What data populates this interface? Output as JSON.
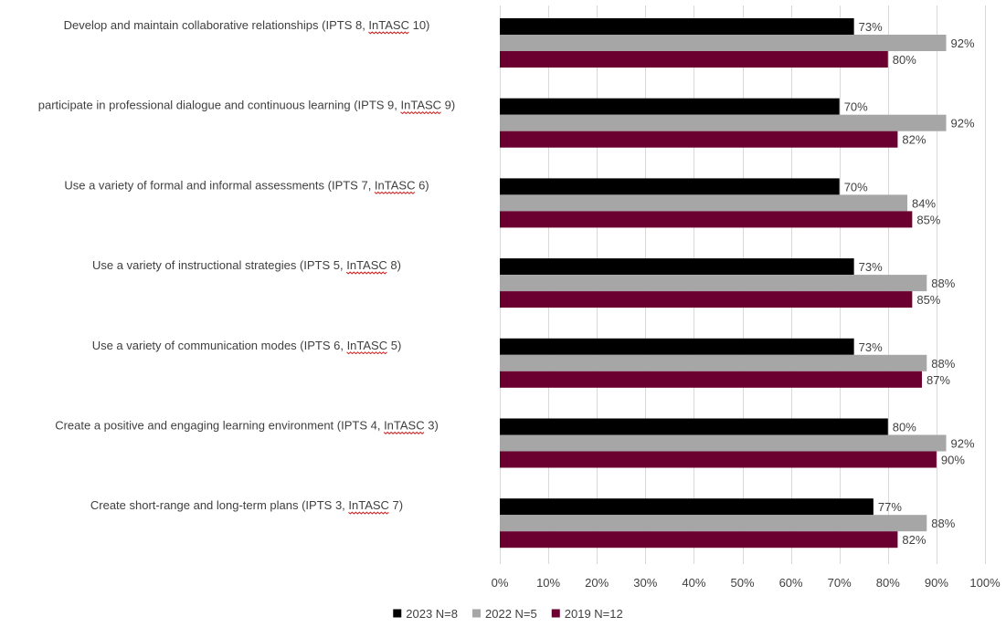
{
  "chart_data": {
    "type": "bar",
    "orientation": "horizontal",
    "title": "",
    "xlabel": "",
    "ylabel": "",
    "xlim": [
      0,
      100
    ],
    "x_ticks": [
      "0%",
      "10%",
      "20%",
      "30%",
      "40%",
      "50%",
      "60%",
      "70%",
      "80%",
      "90%",
      "100%"
    ],
    "grid": true,
    "legend_position": "bottom",
    "value_suffix": "%",
    "categories": [
      "Develop and maintain collaborative relationships (IPTS 8, InTASC 10)",
      "participate in professional dialogue and continuous learning (IPTS 9, InTASC 9)",
      "Use a variety of formal and informal assessments (IPTS 7, InTASC 6)",
      "Use a variety of instructional strategies (IPTS 5, InTASC 8)",
      "Use a variety of communication modes (IPTS 6, InTASC 5)",
      "Create a positive and engaging learning environment (IPTS 4, InTASC 3)",
      "Create short-range and long-term plans (IPTS 3, InTASC 7)"
    ],
    "series": [
      {
        "name": "2023 N=8",
        "color": "#000000",
        "values": [
          73,
          70,
          70,
          73,
          73,
          80,
          77
        ]
      },
      {
        "name": "2022 N=5",
        "color": "#a6a6a6",
        "values": [
          92,
          92,
          84,
          88,
          88,
          92,
          88
        ]
      },
      {
        "name": "2019 N=12",
        "color": "#6b0030",
        "values": [
          80,
          82,
          85,
          85,
          87,
          90,
          82
        ]
      }
    ]
  }
}
